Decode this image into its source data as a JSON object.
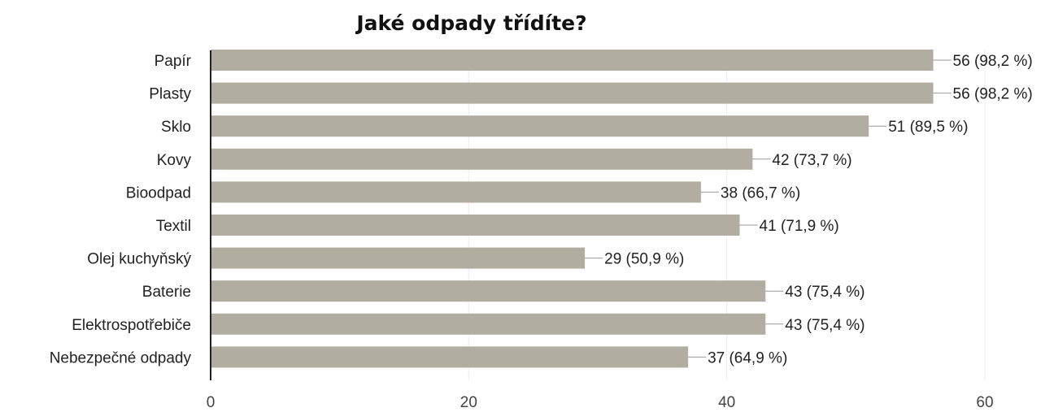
{
  "chart_data": {
    "type": "bar",
    "orientation": "horizontal",
    "title": "Jaké odpady třídíte?",
    "xlabel": "",
    "ylabel": "",
    "categories": [
      "Papír",
      "Plasty",
      "Sklo",
      "Kovy",
      "Bioodpad",
      "Textil",
      "Olej kuchyňský",
      "Baterie",
      "Elektrospotřebiče",
      "Nebezpečné odpady"
    ],
    "values": [
      56,
      56,
      51,
      42,
      38,
      41,
      29,
      43,
      43,
      37
    ],
    "data_labels": [
      "56 (98,2 %)",
      "56 (98,2 %)",
      "51 (89,5 %)",
      "42 (73,7 %)",
      "38 (66,7 %)",
      "41 (71,9 %)",
      "29 (50,9 %)",
      "43 (75,4 %)",
      "43 (75,4 %)",
      "37 (64,9 %)"
    ],
    "xlim": [
      0,
      60
    ],
    "x_ticks": [
      0,
      20,
      40,
      60
    ],
    "grid": true,
    "legend": "none",
    "colors": {
      "bar": "#b2ada1",
      "grid": "#eeeeee",
      "axis": "#222222",
      "leader": "#999999"
    }
  }
}
